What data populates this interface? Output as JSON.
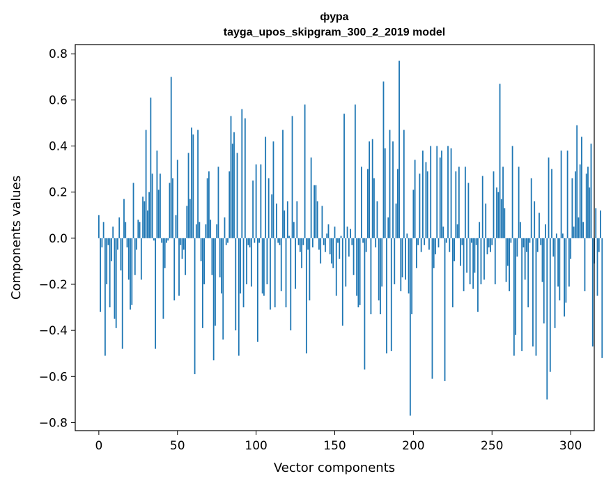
{
  "chart_data": {
    "type": "bar",
    "title": "фура",
    "subtitle": "tayga_upos_skipgram_300_2_2019 model",
    "xlabel": "Vector components",
    "ylabel": "Components values",
    "xlim": [
      -15,
      315
    ],
    "ylim": [
      -0.835,
      0.84
    ],
    "xticks": [
      0,
      50,
      100,
      150,
      200,
      250,
      300
    ],
    "yticks": [
      -0.8,
      -0.6,
      -0.4,
      -0.2,
      0.0,
      0.2,
      0.4,
      0.6,
      0.8
    ],
    "ytick_labels": [
      "−0.8",
      "−0.6",
      "−0.4",
      "−0.2",
      "0.0",
      "0.2",
      "0.4",
      "0.6",
      "0.8"
    ],
    "bar_color": "#1f77b4",
    "values": [
      0.1,
      -0.32,
      -0.04,
      0.07,
      -0.51,
      -0.2,
      -0.03,
      -0.3,
      -0.1,
      0.05,
      -0.35,
      -0.39,
      -0.05,
      0.09,
      -0.14,
      -0.48,
      0.17,
      0.07,
      -0.04,
      -0.18,
      -0.31,
      -0.29,
      0.24,
      -0.16,
      -0.05,
      0.08,
      0.07,
      -0.18,
      0.18,
      0.16,
      0.47,
      0.12,
      0.2,
      0.61,
      0.28,
      -0.01,
      -0.48,
      0.38,
      0.21,
      0.28,
      -0.02,
      -0.35,
      -0.13,
      -0.02,
      -0.01,
      0.24,
      0.7,
      0.26,
      -0.27,
      0.1,
      0.34,
      -0.25,
      -0.03,
      -0.09,
      -0.05,
      -0.16,
      0.14,
      0.37,
      0.17,
      0.48,
      0.45,
      -0.59,
      0.06,
      0.47,
      0.07,
      -0.1,
      -0.39,
      -0.2,
      0.06,
      0.26,
      0.29,
      0.08,
      -0.16,
      -0.53,
      -0.38,
      0.06,
      0.31,
      -0.17,
      -0.24,
      -0.44,
      0.09,
      -0.03,
      -0.02,
      0.29,
      0.53,
      0.41,
      0.46,
      -0.4,
      0.37,
      -0.51,
      -0.24,
      0.56,
      -0.3,
      0.52,
      -0.2,
      -0.03,
      -0.04,
      -0.21,
      0.25,
      -0.02,
      0.32,
      -0.45,
      -0.02,
      0.32,
      -0.24,
      -0.25,
      0.44,
      -0.2,
      0.26,
      -0.31,
      0.19,
      0.42,
      -0.3,
      0.15,
      -0.02,
      -0.03,
      -0.23,
      0.47,
      0.12,
      -0.3,
      0.16,
      0.01,
      -0.4,
      0.53,
      0.07,
      -0.22,
      0.16,
      -0.03,
      -0.06,
      -0.13,
      -0.03,
      0.58,
      -0.5,
      -0.05,
      -0.27,
      0.35,
      -0.04,
      0.23,
      0.23,
      0.16,
      -0.05,
      -0.11,
      0.14,
      -0.03,
      -0.06,
      0.02,
      0.06,
      -0.07,
      -0.11,
      -0.13,
      0.05,
      -0.25,
      -0.02,
      -0.09,
      0.01,
      -0.38,
      0.54,
      -0.21,
      0.05,
      -0.08,
      0.04,
      -0.03,
      -0.16,
      0.58,
      -0.25,
      -0.3,
      -0.29,
      0.31,
      -0.02,
      -0.57,
      -0.06,
      0.3,
      0.42,
      -0.33,
      0.43,
      0.26,
      -0.04,
      0.16,
      -0.27,
      -0.33,
      -0.21,
      0.68,
      0.39,
      -0.5,
      0.09,
      0.47,
      -0.49,
      0.42,
      -0.2,
      0.15,
      0.3,
      0.77,
      -0.23,
      -0.17,
      0.47,
      -0.18,
      0.02,
      -0.24,
      -0.77,
      -0.33,
      0.21,
      0.34,
      -0.13,
      -0.03,
      0.28,
      -0.06,
      0.38,
      -0.03,
      0.33,
      0.29,
      -0.05,
      0.4,
      -0.61,
      -0.13,
      -0.07,
      0.4,
      -0.04,
      0.35,
      0.38,
      0.05,
      -0.62,
      -0.02,
      0.4,
      -0.06,
      0.39,
      -0.3,
      -0.1,
      0.29,
      0.06,
      0.31,
      -0.12,
      -0.03,
      -0.23,
      0.31,
      -0.15,
      0.24,
      -0.2,
      -0.02,
      -0.22,
      -0.15,
      -0.03,
      -0.32,
      0.07,
      -0.2,
      0.27,
      -0.18,
      0.15,
      -0.07,
      -0.04,
      -0.06,
      -0.03,
      0.29,
      -0.2,
      0.22,
      0.2,
      0.67,
      0.17,
      0.31,
      0.13,
      -0.19,
      -0.12,
      -0.23,
      -0.02,
      0.4,
      -0.51,
      -0.42,
      -0.08,
      0.31,
      0.07,
      -0.49,
      -0.04,
      -0.18,
      -0.06,
      -0.3,
      -0.02,
      0.26,
      -0.47,
      0.16,
      -0.51,
      -0.06,
      0.11,
      -0.03,
      -0.19,
      -0.37,
      0.06,
      -0.7,
      0.35,
      -0.58,
      0.3,
      -0.08,
      -0.39,
      0.02,
      -0.21,
      -0.27,
      0.38,
      0.02,
      -0.34,
      -0.28,
      0.38,
      -0.21,
      -0.09,
      0.26,
      0.05,
      0.29,
      0.49,
      0.09,
      0.32,
      0.44,
      0.07,
      -0.23,
      0.28,
      0.31,
      0.22,
      0.41,
      -0.47,
      -0.11,
      0.13,
      -0.25,
      -0.06,
      0.12,
      -0.52
    ]
  }
}
